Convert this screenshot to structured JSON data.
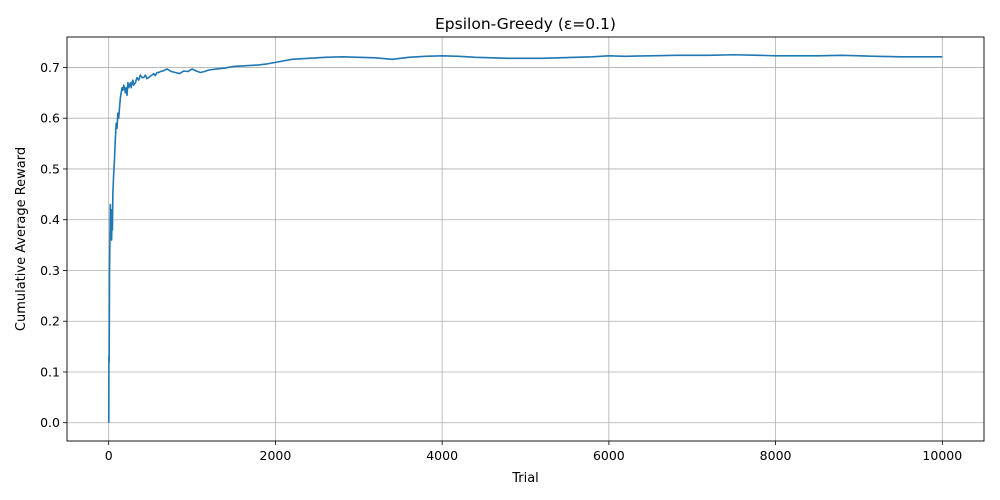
{
  "chart_data": {
    "type": "line",
    "title": "Epsilon-Greedy (ε=0.1)",
    "xlabel": "Trial",
    "ylabel": "Cumulative Average Reward",
    "xlim": [
      -500,
      10500
    ],
    "ylim": [
      -0.036,
      0.76
    ],
    "xticks": [
      0,
      2000,
      4000,
      6000,
      8000,
      10000
    ],
    "xtick_labels": [
      "0",
      "2000",
      "4000",
      "6000",
      "8000",
      "10000"
    ],
    "yticks": [
      0.0,
      0.1,
      0.2,
      0.3,
      0.4,
      0.5,
      0.6,
      0.7
    ],
    "ytick_labels": [
      "0.0",
      "0.1",
      "0.2",
      "0.3",
      "0.4",
      "0.5",
      "0.6",
      "0.7"
    ],
    "grid": true,
    "color": "#1f77b4",
    "series": [
      {
        "x": [
          1,
          3,
          6,
          10,
          15,
          20,
          25,
          30,
          35,
          40,
          45,
          50,
          55,
          60,
          70,
          80,
          90,
          100,
          110,
          120,
          130,
          140,
          150,
          160,
          170,
          180,
          190,
          200,
          210,
          220,
          230,
          240,
          250,
          260,
          270,
          280,
          290,
          300,
          320,
          340,
          360,
          380,
          400,
          420,
          440,
          460,
          480,
          500,
          520,
          540,
          560,
          580,
          600,
          620,
          650,
          700,
          750,
          800,
          850,
          900,
          950,
          1000,
          1050,
          1100,
          1150,
          1200,
          1300,
          1400,
          1500,
          1600,
          1700,
          1800,
          1900,
          2000,
          2100,
          2200,
          2400,
          2600,
          2800,
          3000,
          3200,
          3400,
          3600,
          3800,
          4000,
          4200,
          4400,
          4600,
          4800,
          5000,
          5200,
          5400,
          5600,
          5800,
          6000,
          6200,
          6500,
          6800,
          7000,
          7200,
          7500,
          7800,
          8000,
          8200,
          8500,
          8800,
          9000,
          9200,
          9500,
          9800,
          10000
        ],
        "y": [
          0.0,
          0.13,
          0.12,
          0.3,
          0.36,
          0.43,
          0.37,
          0.42,
          0.36,
          0.41,
          0.38,
          0.45,
          0.47,
          0.49,
          0.52,
          0.56,
          0.59,
          0.58,
          0.61,
          0.6,
          0.62,
          0.64,
          0.65,
          0.66,
          0.655,
          0.665,
          0.66,
          0.65,
          0.66,
          0.645,
          0.67,
          0.66,
          0.665,
          0.67,
          0.66,
          0.67,
          0.675,
          0.665,
          0.67,
          0.68,
          0.675,
          0.685,
          0.68,
          0.68,
          0.685,
          0.678,
          0.68,
          0.683,
          0.685,
          0.688,
          0.684,
          0.69,
          0.69,
          0.692,
          0.693,
          0.697,
          0.692,
          0.69,
          0.688,
          0.693,
          0.692,
          0.697,
          0.693,
          0.69,
          0.692,
          0.695,
          0.697,
          0.699,
          0.702,
          0.703,
          0.704,
          0.705,
          0.707,
          0.71,
          0.713,
          0.716,
          0.718,
          0.72,
          0.721,
          0.72,
          0.719,
          0.716,
          0.72,
          0.722,
          0.723,
          0.722,
          0.72,
          0.719,
          0.718,
          0.718,
          0.718,
          0.719,
          0.72,
          0.721,
          0.723,
          0.722,
          0.723,
          0.724,
          0.724,
          0.724,
          0.725,
          0.724,
          0.723,
          0.723,
          0.723,
          0.724,
          0.723,
          0.722,
          0.721,
          0.721,
          0.721
        ]
      }
    ]
  }
}
